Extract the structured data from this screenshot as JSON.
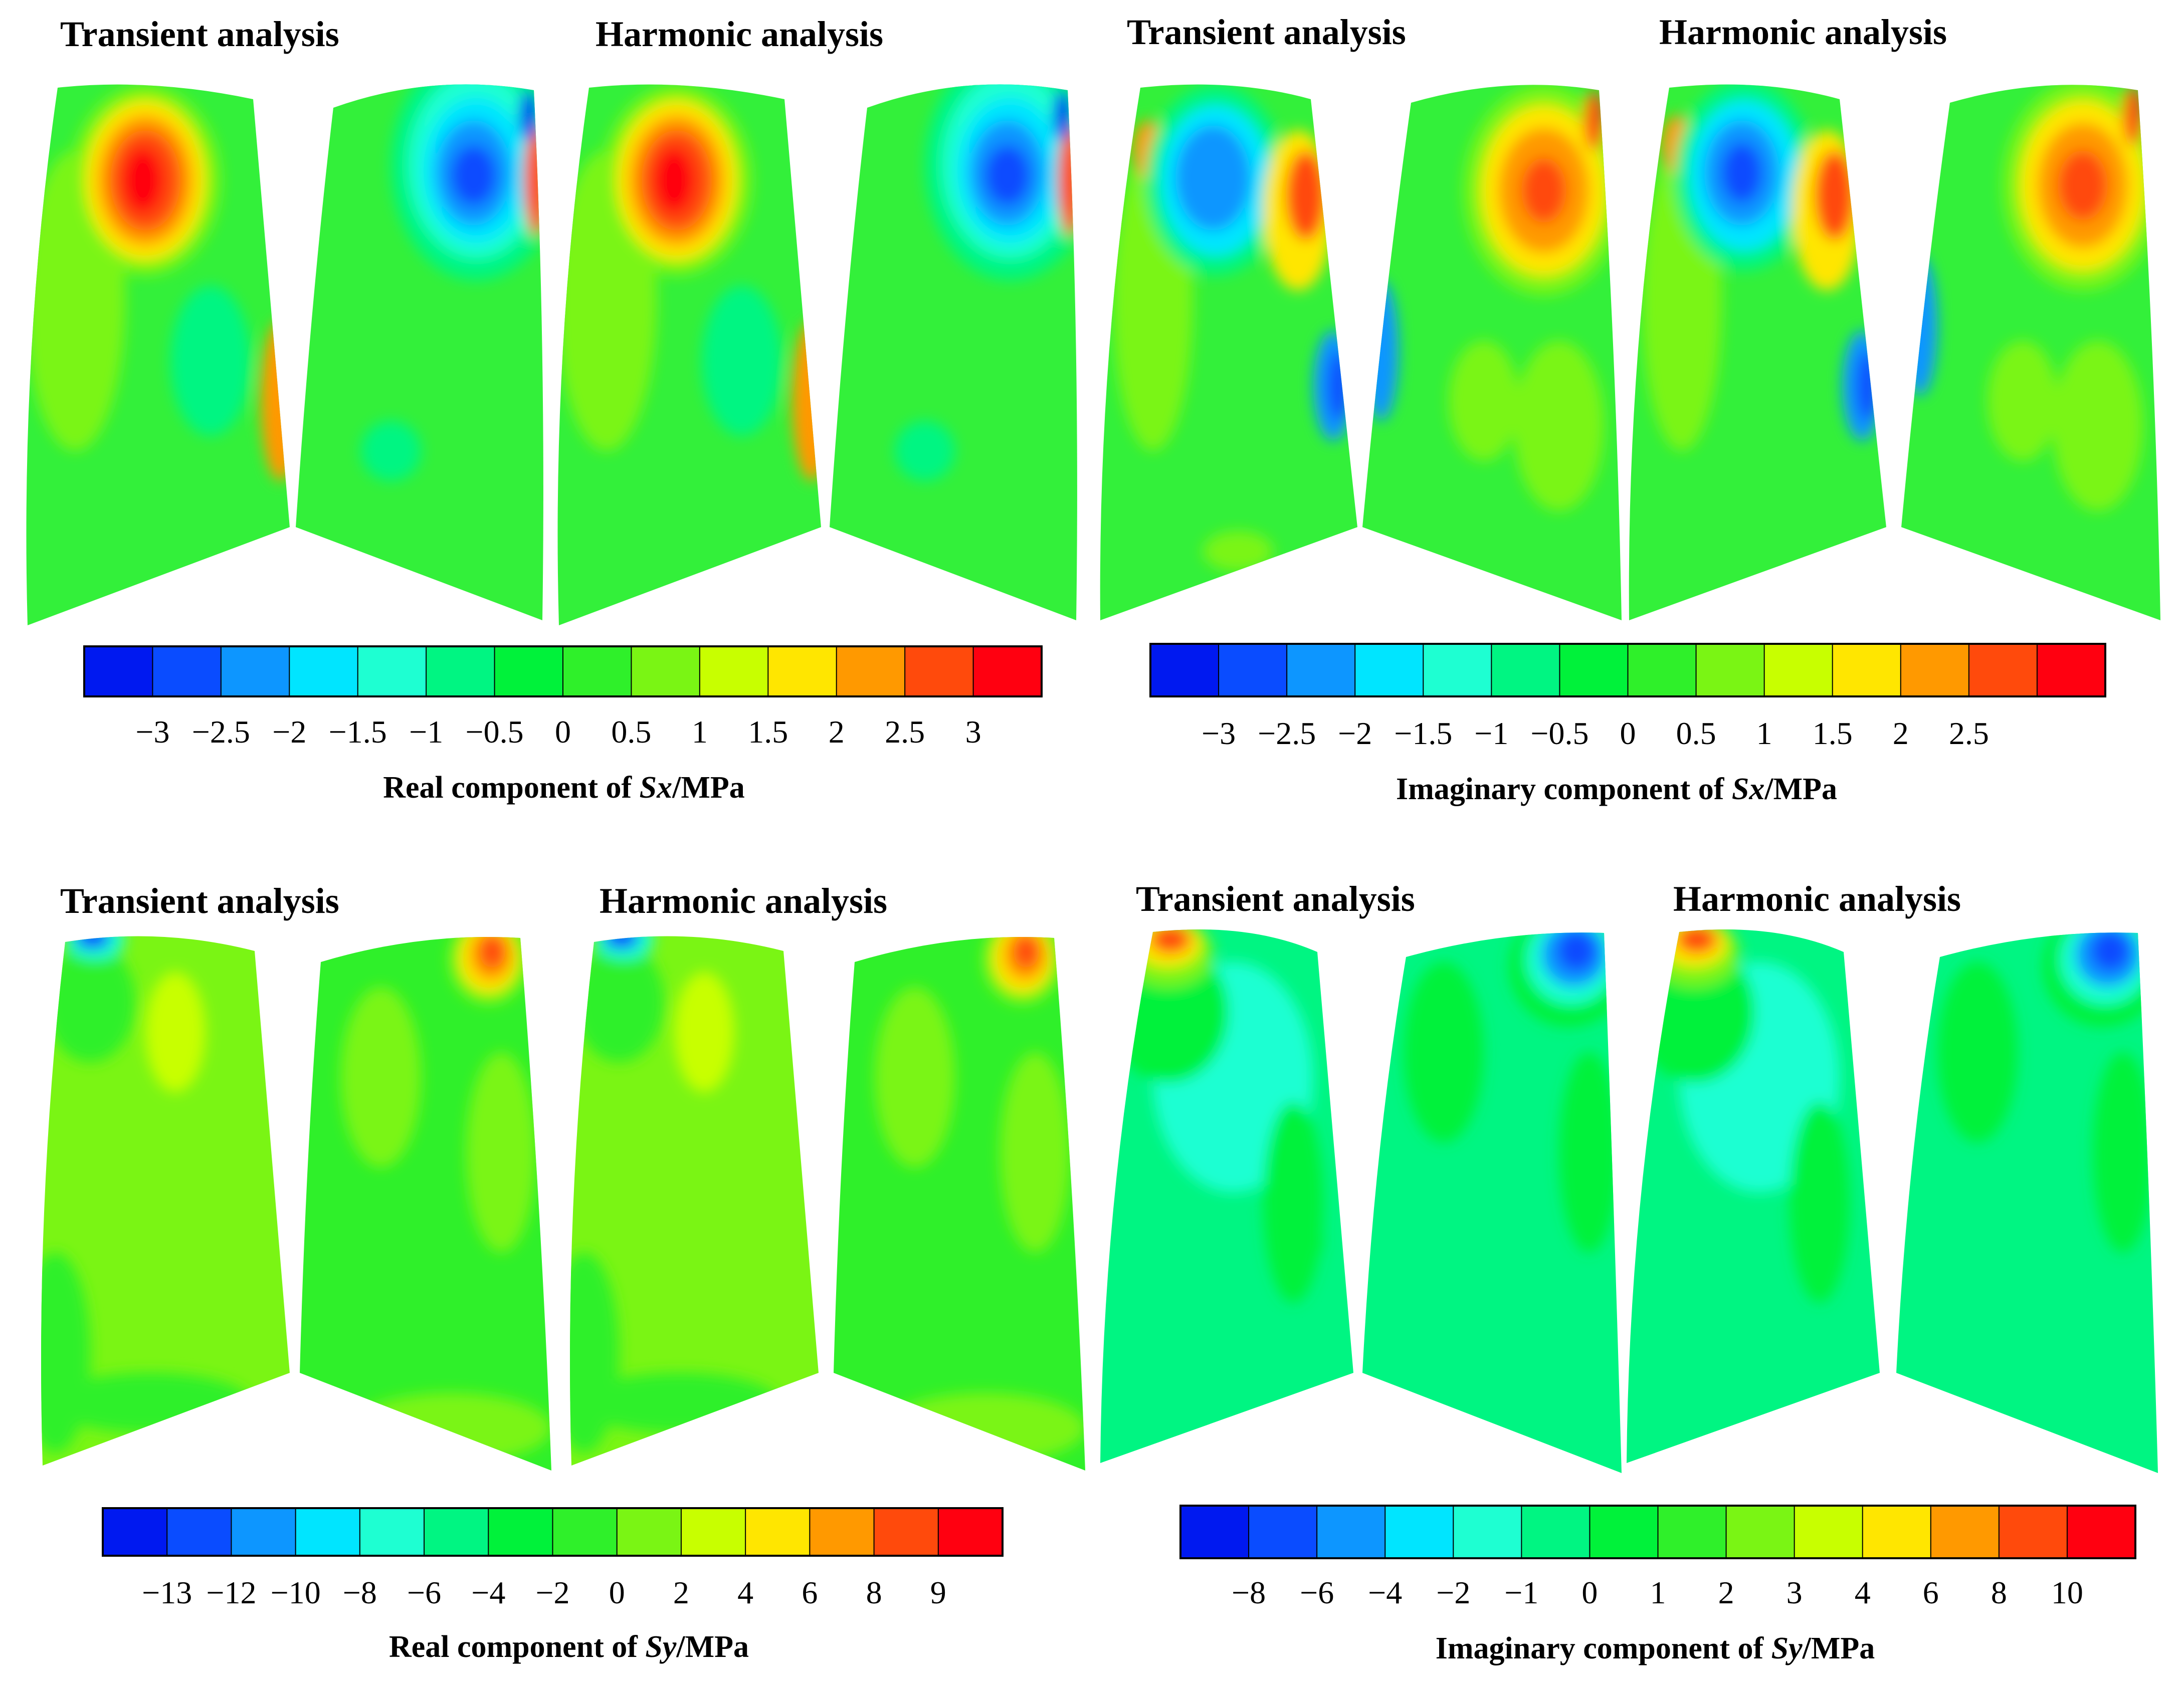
{
  "panels": [
    {
      "id": "sx-real",
      "titles": [
        "Transient analysis",
        "Harmonic analysis"
      ]
    },
    {
      "id": "sx-imag",
      "titles": [
        "Transient analysis",
        "Harmonic analysis"
      ]
    },
    {
      "id": "sy-real",
      "titles": [
        "Transient analysis",
        "Harmonic analysis"
      ]
    },
    {
      "id": "sy-imag",
      "titles": [
        "Transient analysis",
        "Harmonic analysis"
      ]
    }
  ],
  "colors": {
    "scale": [
      "#0019f0",
      "#0a4cff",
      "#0d96ff",
      "#00e5ff",
      "#1effd2",
      "#00f582",
      "#00f23a",
      "#2ff02a",
      "#7af514",
      "#c8ff00",
      "#ffe600",
      "#ff9900",
      "#ff4a0c",
      "#ff0010"
    ],
    "blade_base": "#33f03a"
  },
  "colorbars": [
    {
      "id": "sx-real",
      "caption_prefix": "Real component of ",
      "caption_var": "Sx",
      "caption_suffix": "/MPa",
      "ticks": [
        "−3",
        "−2.5",
        "−2",
        "−1.5",
        "−1",
        "−0.5",
        "0",
        "0.5",
        "1",
        "1.5",
        "2",
        "2.5",
        "3"
      ]
    },
    {
      "id": "sx-imag",
      "caption_prefix": "Imaginary component of ",
      "caption_var": "Sx",
      "caption_suffix": "/MPa",
      "ticks": [
        "−3",
        "−2.5",
        "−2",
        "−1.5",
        "−1",
        "−0.5",
        "0",
        "0.5",
        "1",
        "1.5",
        "2",
        "2.5"
      ]
    },
    {
      "id": "sy-real",
      "caption_prefix": "Real component of ",
      "caption_var": "Sy",
      "caption_suffix": "/MPa",
      "ticks": [
        "−13",
        "−12",
        "−10",
        "−8",
        "−6",
        "−4",
        "−2",
        "0",
        "2",
        "4",
        "6",
        "8",
        "9"
      ]
    },
    {
      "id": "sy-imag",
      "caption_prefix": "Imaginary component of ",
      "caption_var": "Sy",
      "caption_suffix": "/MPa",
      "ticks": [
        "−8",
        "−6",
        "−4",
        "−2",
        "−1",
        "0",
        "1",
        "2",
        "3",
        "4",
        "6",
        "8",
        "10"
      ]
    }
  ]
}
